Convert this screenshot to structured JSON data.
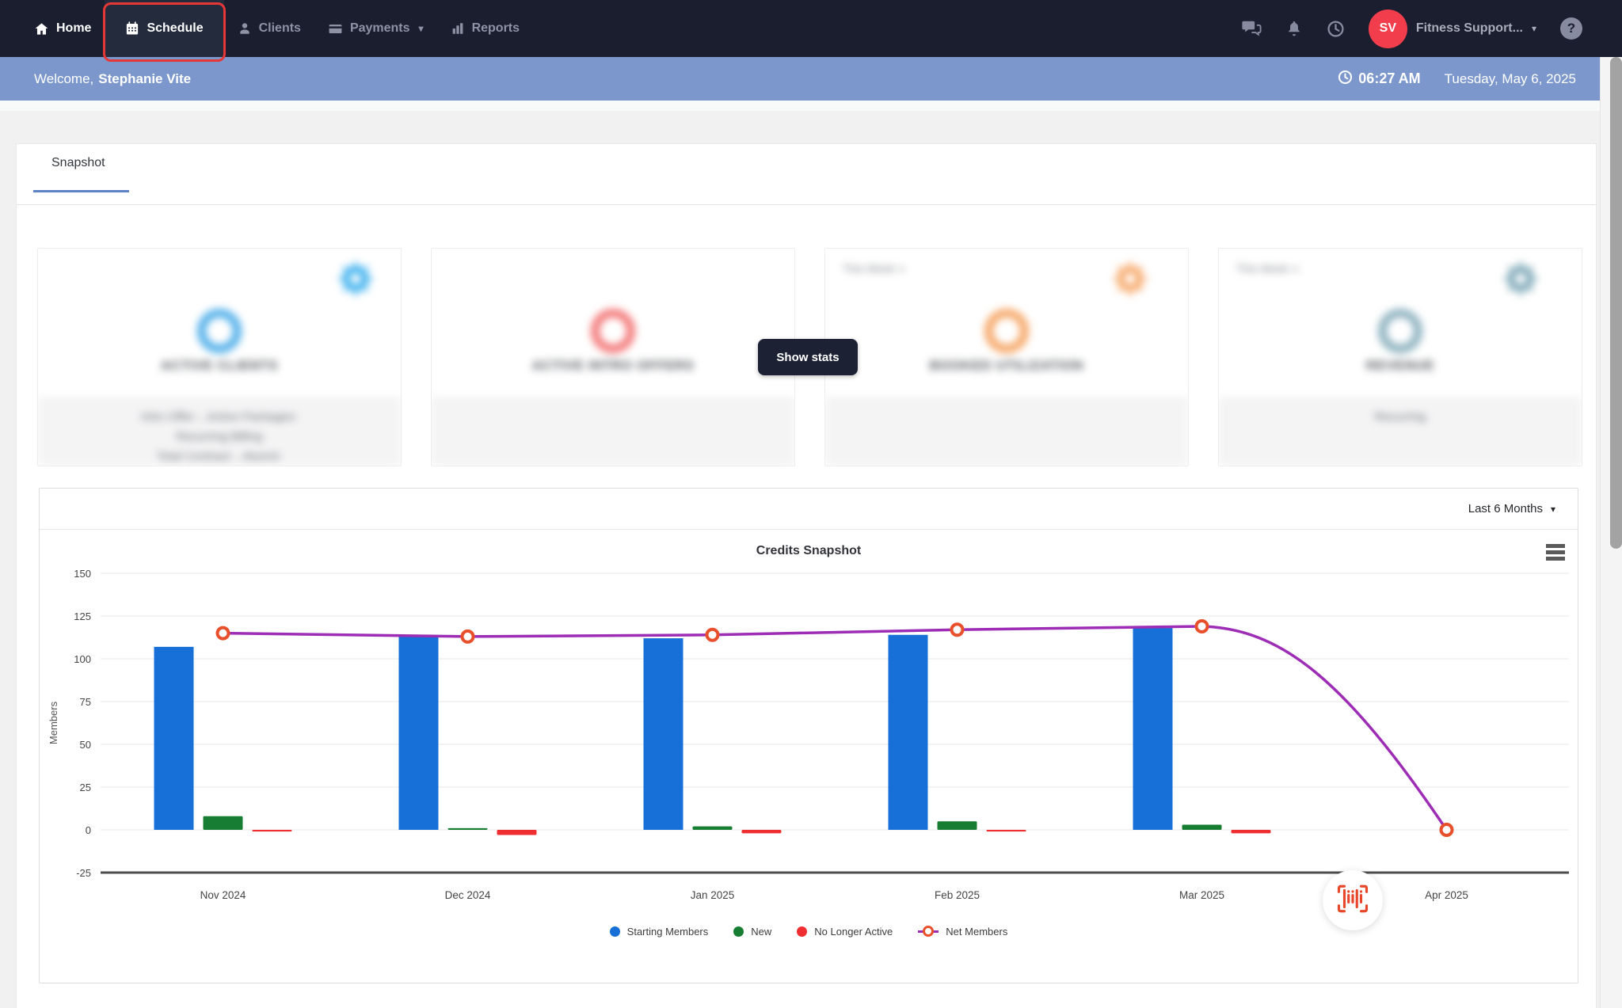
{
  "navbar": {
    "items": [
      {
        "label": "Home"
      },
      {
        "label": "Schedule"
      },
      {
        "label": "Clients"
      },
      {
        "label": "Payments"
      },
      {
        "label": "Reports"
      }
    ],
    "account": {
      "initials": "SV",
      "name": "Fitness Support..."
    },
    "help_label": "?"
  },
  "welcome_bar": {
    "greeting": "Welcome,",
    "user_name": "Stephanie Vite",
    "time": "06:27 AM",
    "date": "Tuesday, May 6, 2025"
  },
  "tabs": {
    "snapshot": "Snapshot"
  },
  "stats_overlay": {
    "show_stats_label": "Show stats"
  },
  "cards": [
    {
      "title": "ACTIVE CLIENTS",
      "header_label": "",
      "footer_lines": [
        "Intro Offer: , Active Packages:",
        "Recurring Billing",
        "Total Contract: , Alumni:"
      ],
      "ring_color": "#55b1ea",
      "gear_color": "#3eb1ef"
    },
    {
      "title": "ACTIVE INTRO OFFERS",
      "header_label": "",
      "footer_lines": [],
      "ring_color": "#f47b7b",
      "gear_color": ""
    },
    {
      "title": "BOOKED UTILIZATION",
      "header_label": "This Week",
      "footer_lines": [],
      "ring_color": "#f6a96b",
      "gear_color": "#f6a96b"
    },
    {
      "title": "REVENUE",
      "header_label": "This Week",
      "footer_lines": [
        "Recurring"
      ],
      "ring_color": "#8fb3c0",
      "gear_color": "#7fa9b8"
    }
  ],
  "chart_panel": {
    "range_label": "Last 6 Months"
  },
  "chart_data": {
    "type": "bar",
    "subtype": "bar-line-combo",
    "title": "Credits Snapshot",
    "categories": [
      "Nov 2024",
      "Dec 2024",
      "Jan 2025",
      "Feb 2025",
      "Mar 2025",
      "Apr 2025"
    ],
    "series": [
      {
        "name": "Starting Members",
        "type": "bar",
        "color": "#1670d8",
        "values": [
          107,
          113,
          112,
          114,
          118,
          0
        ]
      },
      {
        "name": "New",
        "type": "bar",
        "color": "#177d33",
        "values": [
          8,
          1,
          2,
          5,
          3,
          0
        ]
      },
      {
        "name": "No Longer Active",
        "type": "bar",
        "color": "#ee2e31",
        "values": [
          -1,
          -3,
          -2,
          -1,
          -2,
          0
        ]
      },
      {
        "name": "Net Members",
        "type": "line",
        "color": "#9d2db5",
        "marker_color": "#e8502c",
        "values": [
          115,
          113,
          114,
          117,
          119,
          0
        ]
      }
    ],
    "ylabel": "Members",
    "ylim": [
      -25,
      150
    ],
    "ytick_step": 25,
    "grid": true,
    "legend_position": "bottom"
  }
}
